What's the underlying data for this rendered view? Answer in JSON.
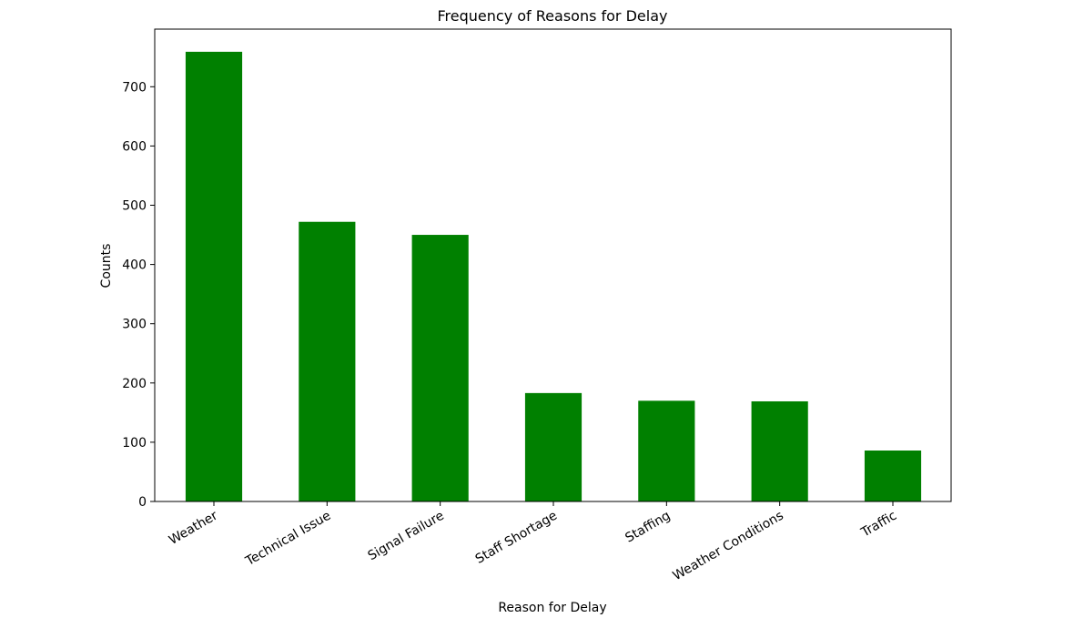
{
  "chart_data": {
    "type": "bar",
    "title": "Frequency of Reasons for Delay",
    "xlabel": "Reason for Delay",
    "ylabel": "Counts",
    "categories": [
      "Weather",
      "Technical Issue",
      "Signal Failure",
      "Staff Shortage",
      "Staffing",
      "Weather Conditions",
      "Traffic"
    ],
    "values": [
      759,
      472,
      450,
      183,
      170,
      169,
      86
    ],
    "ylim": [
      0,
      760
    ],
    "yticks": [
      0,
      100,
      200,
      300,
      400,
      500,
      600,
      700
    ],
    "x_tick_rotation_deg": 30,
    "grid": false,
    "legend": "none",
    "bar_color": "#008000"
  }
}
